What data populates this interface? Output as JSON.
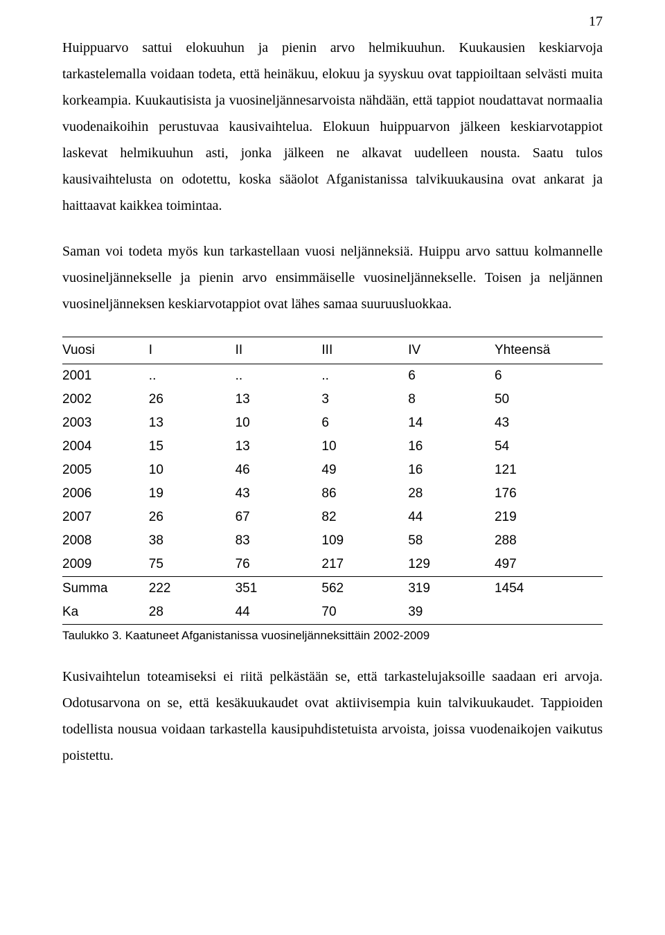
{
  "page_number": "17",
  "paragraphs": {
    "p1": "Huippuarvo sattui elokuuhun ja pienin arvo helmikuuhun. Kuukausien keskiarvoja tarkastelemalla voidaan todeta, että heinäkuu, elokuu ja syyskuu ovat tappioiltaan selvästi muita korkeampia. Kuukautisista ja vuosineljännesarvoista nähdään, että tappiot noudattavat normaalia vuodenaikoihin perustuvaa kausivaihtelua. Elokuun huippuarvon jälkeen keskiarvotappiot laskevat helmikuuhun asti, jonka jälkeen ne alkavat uudelleen nousta. Saatu tulos kausivaihtelusta on odotettu, koska sääolot Afganistanissa talvikuukausina ovat ankarat ja haittaavat kaikkea toimintaa.",
    "p2": "Saman voi todeta myös kun tarkastellaan vuosi neljänneksiä. Huippu arvo sattuu kolmannelle vuosineljännekselle ja pienin arvo ensimmäiselle vuosineljännekselle. Toisen ja neljännen vuosineljänneksen keskiarvotappiot ovat lähes samaa suuruusluokkaa.",
    "p3": "Kusivaihtelun toteamiseksi ei riitä pelkästään se, että tarkastelujaksoille saadaan eri arvoja. Odotusarvona on se, että kesäkuukaudet ovat aktiivisempia kuin talvikuukaudet. Tappioiden todellista nousua voidaan tarkastella kausipuhdistetuista arvoista, joissa vuodenaikojen vaikutus poistettu."
  },
  "table": {
    "caption": "Taulukko 3. Kaatuneet Afganistanissa vuosineljänneksittäin 2002-2009",
    "columns": [
      "Vuosi",
      "I",
      "II",
      "III",
      "IV",
      "Yhteensä"
    ],
    "col_widths": [
      "16%",
      "16%",
      "16%",
      "16%",
      "16%",
      "20%"
    ],
    "rows": [
      [
        "2001",
        "..",
        "..",
        "..",
        "6",
        "6"
      ],
      [
        "2002",
        "26",
        "13",
        "3",
        "8",
        "50"
      ],
      [
        "2003",
        "13",
        "10",
        "6",
        "14",
        "43"
      ],
      [
        "2004",
        "15",
        "13",
        "10",
        "16",
        "54"
      ],
      [
        "2005",
        "10",
        "46",
        "49",
        "16",
        "121"
      ],
      [
        "2006",
        "19",
        "43",
        "86",
        "28",
        "176"
      ],
      [
        "2007",
        "26",
        "67",
        "82",
        "44",
        "219"
      ],
      [
        "2008",
        "38",
        "83",
        "109",
        "58",
        "288"
      ],
      [
        "2009",
        "75",
        "76",
        "217",
        "129",
        "497"
      ]
    ],
    "footer": [
      [
        "Summa",
        "222",
        "351",
        "562",
        "319",
        "1454"
      ],
      [
        "Ka",
        "28",
        "44",
        "70",
        "39",
        ""
      ]
    ]
  }
}
